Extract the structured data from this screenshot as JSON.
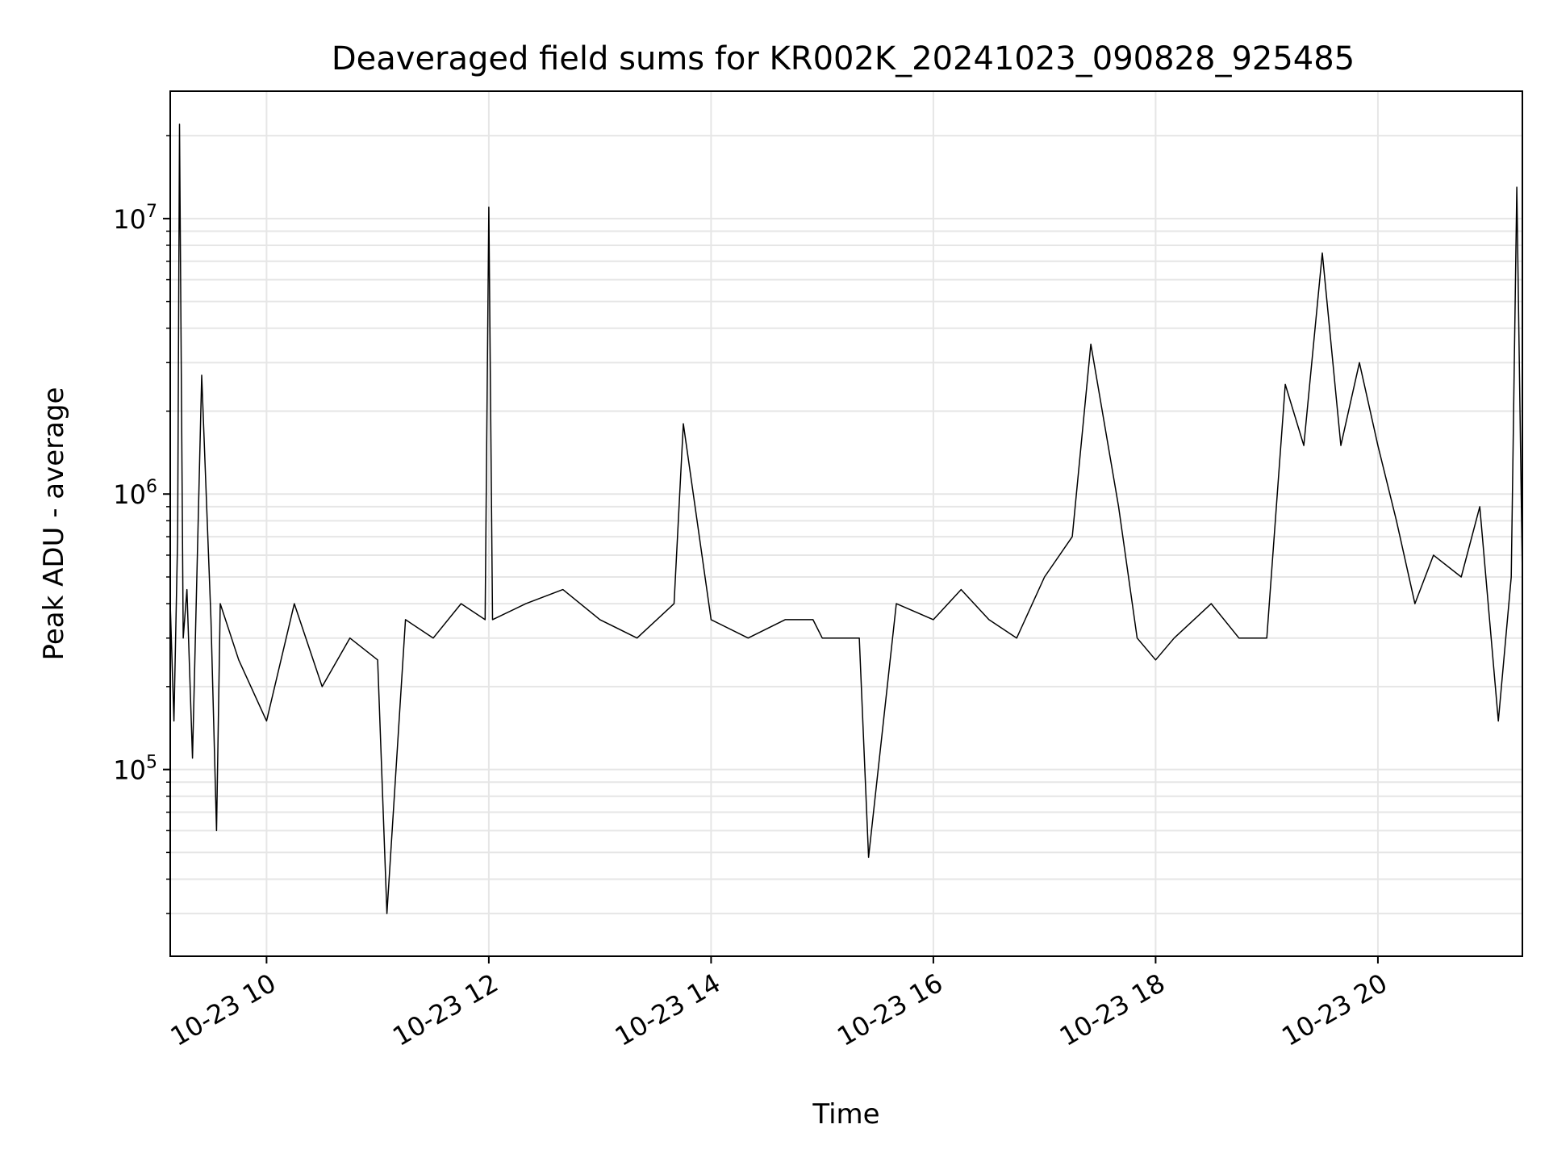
{
  "chart_data": {
    "type": "line",
    "title": "Deaveraged field sums for KR002K_20241023_090828_925485",
    "xlabel": "Time",
    "ylabel": "Peak ADU - average",
    "yscale": "log",
    "ylim": [
      21000,
      29000000
    ],
    "xlim": [
      "10-23 09:08",
      "10-23 21:18"
    ],
    "xticks": [
      {
        "label": "10-23 10",
        "value": "10-23 10:00"
      },
      {
        "label": "10-23 12",
        "value": "10-23 12:00"
      },
      {
        "label": "10-23 14",
        "value": "10-23 14:00"
      },
      {
        "label": "10-23 16",
        "value": "10-23 16:00"
      },
      {
        "label": "10-23 18",
        "value": "10-23 18:00"
      },
      {
        "label": "10-23 20",
        "value": "10-23 20:00"
      }
    ],
    "yticks": [
      {
        "base": "10",
        "exp": "5",
        "value": 100000
      },
      {
        "base": "10",
        "exp": "6",
        "value": 1000000
      },
      {
        "base": "10",
        "exp": "7",
        "value": 10000000
      }
    ],
    "grid": true,
    "line_color": "#000000",
    "grid_color": "#e6e6e6",
    "series": [
      {
        "x": [
          "10-23 09:08",
          "10-23 09:10",
          "10-23 09:12",
          "10-23 09:13",
          "10-23 09:15",
          "10-23 09:17",
          "10-23 09:20",
          "10-23 09:25",
          "10-23 09:30",
          "10-23 09:33",
          "10-23 09:35",
          "10-23 09:45",
          "10-23 10:00",
          "10-23 10:15",
          "10-23 10:30",
          "10-23 10:45",
          "10-23 11:00",
          "10-23 11:05",
          "10-23 11:15",
          "10-23 11:30",
          "10-23 11:45",
          "10-23 11:58",
          "10-23 12:00",
          "10-23 12:02",
          "10-23 12:20",
          "10-23 12:40",
          "10-23 13:00",
          "10-23 13:20",
          "10-23 13:40",
          "10-23 13:45",
          "10-23 14:00",
          "10-23 14:20",
          "10-23 14:40",
          "10-23 14:55",
          "10-23 15:00",
          "10-23 15:20",
          "10-23 15:25",
          "10-23 15:40",
          "10-23 16:00",
          "10-23 16:15",
          "10-23 16:30",
          "10-23 16:45",
          "10-23 17:00",
          "10-23 17:15",
          "10-23 17:25",
          "10-23 17:40",
          "10-23 17:50",
          "10-23 18:00",
          "10-23 18:10",
          "10-23 18:30",
          "10-23 18:45",
          "10-23 19:00",
          "10-23 19:10",
          "10-23 19:20",
          "10-23 19:30",
          "10-23 19:40",
          "10-23 19:50",
          "10-23 20:00",
          "10-23 20:10",
          "10-23 20:20",
          "10-23 20:30",
          "10-23 20:45",
          "10-23 20:55",
          "10-23 21:05",
          "10-23 21:12",
          "10-23 21:15",
          "10-23 21:18"
        ],
        "y": [
          400000,
          150000,
          700000,
          22000000,
          300000,
          450000,
          110000,
          2700000,
          350000,
          60000,
          400000,
          250000,
          150000,
          400000,
          200000,
          300000,
          250000,
          30000,
          350000,
          300000,
          400000,
          350000,
          11000000,
          350000,
          400000,
          450000,
          350000,
          300000,
          400000,
          1800000,
          350000,
          300000,
          350000,
          350000,
          300000,
          300000,
          48000,
          400000,
          350000,
          450000,
          350000,
          300000,
          500000,
          700000,
          3500000,
          900000,
          300000,
          250000,
          300000,
          400000,
          300000,
          300000,
          2500000,
          1500000,
          7500000,
          1500000,
          3000000,
          1500000,
          800000,
          400000,
          600000,
          500000,
          900000,
          150000,
          500000,
          13000000,
          500000
        ]
      }
    ]
  }
}
